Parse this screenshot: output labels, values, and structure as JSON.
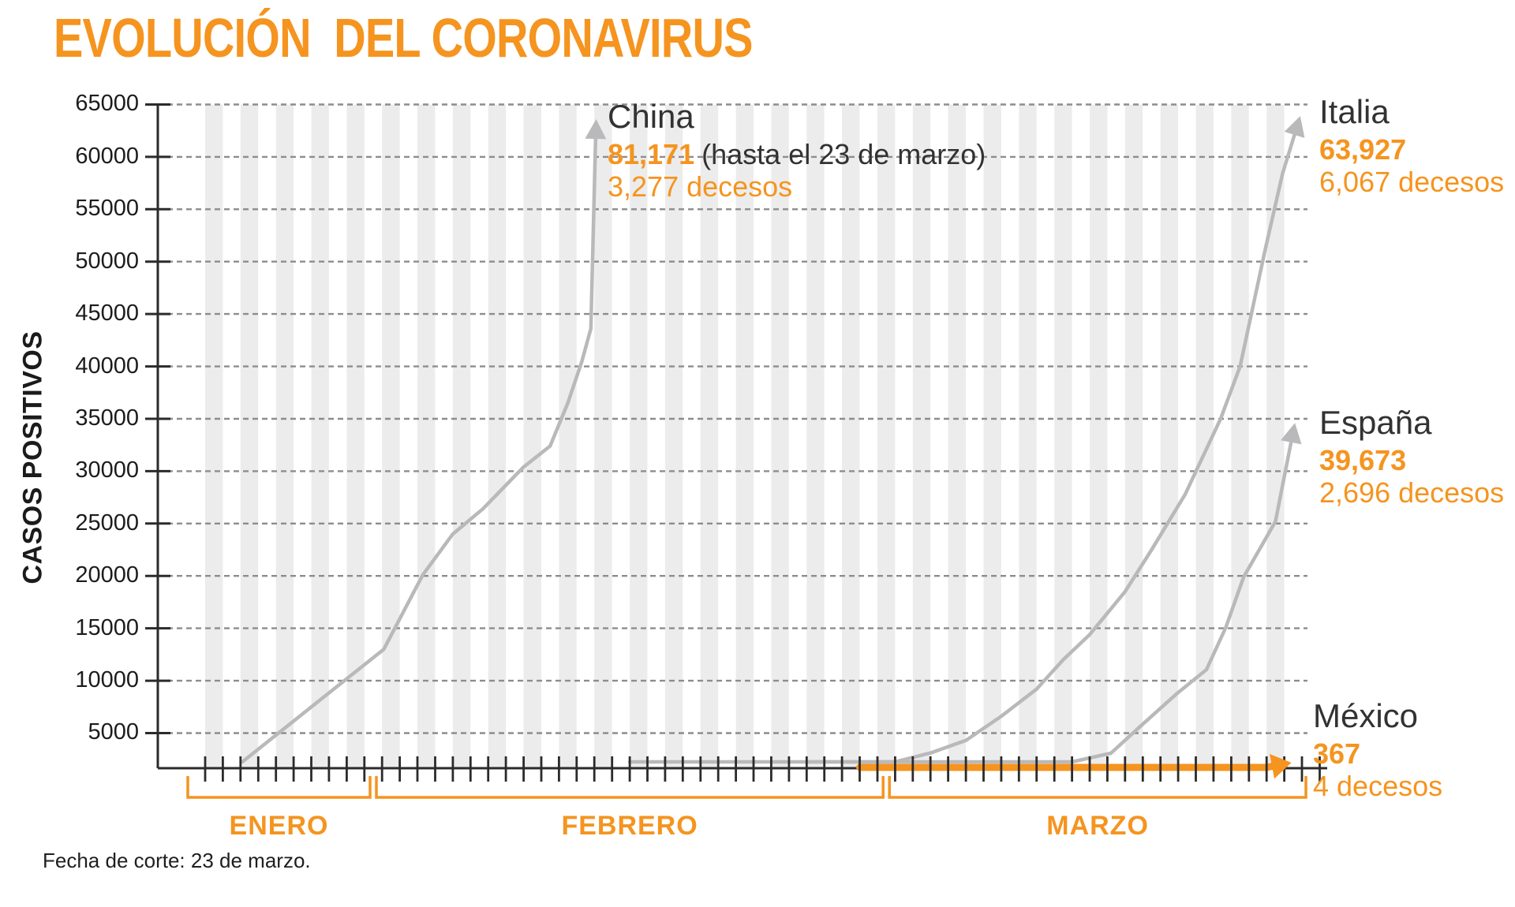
{
  "chart_data": {
    "type": "line",
    "title": "EVOLUCIÓN  DEL CORONAVIRUS",
    "ylabel": "CASOS POSITIVOS",
    "footer": "Fecha de corte: 23 de marzo.",
    "ylim": [
      0,
      65000
    ],
    "grid": true,
    "yticks": [
      65000,
      60000,
      55000,
      50000,
      45000,
      40000,
      35000,
      30000,
      25000,
      20000,
      15000,
      10000,
      5000
    ],
    "x_axis": {
      "unit": "días",
      "months": [
        {
          "label": "ENERO",
          "days": 10
        },
        {
          "label": "FEBRERO",
          "days": 29
        },
        {
          "label": "MARZO",
          "days": 24
        }
      ]
    },
    "colors": {
      "accent": "#F5941F",
      "line_gray": "#B9B9BB",
      "band": "#ECECEC",
      "grid": "#8F8C8B",
      "axis": "#2B2B2B"
    },
    "series": [
      {
        "name": "China",
        "color": "#B9B9BB",
        "width": 4.5,
        "arrow": "up",
        "points": [
          [
            2.1,
            300
          ],
          [
            10.1,
            13000
          ],
          [
            12.3,
            20100
          ],
          [
            14,
            24000
          ],
          [
            15.7,
            26400
          ],
          [
            18,
            30400
          ],
          [
            19.5,
            32400
          ],
          [
            20.5,
            36500
          ],
          [
            21.3,
            40500
          ],
          [
            21.8,
            43600
          ]
        ],
        "arrow_to": [
          22.1,
          63600
        ],
        "annotation": {
          "name": "China",
          "value": "81,171",
          "note": "(hasta el 23 de marzo)",
          "deaths": "3,277 decesos",
          "final_cases": 81171,
          "final_deaths": 3277
        }
      },
      {
        "name": "Italia",
        "color": "#B9B9BB",
        "width": 4.5,
        "arrow": "up",
        "points": [
          [
            24,
            5
          ],
          [
            30,
            60
          ],
          [
            32,
            155
          ],
          [
            34,
            320
          ],
          [
            36,
            650
          ],
          [
            38,
            1130
          ],
          [
            39,
            2100
          ],
          [
            41,
            3100
          ],
          [
            43,
            4300
          ],
          [
            45,
            6600
          ],
          [
            47,
            9200
          ],
          [
            48.5,
            12000
          ],
          [
            50,
            14400
          ],
          [
            52,
            18500
          ],
          [
            53.5,
            22500
          ],
          [
            55.4,
            27800
          ],
          [
            57.4,
            35000
          ],
          [
            58.5,
            40000
          ],
          [
            59.9,
            51000
          ],
          [
            60.9,
            58400
          ]
        ],
        "arrow_to": [
          61.9,
          63900
        ],
        "annotation": {
          "name": "Italia",
          "value": "63,927",
          "deaths": "6,067 decesos",
          "final_cases": 63927,
          "final_deaths": 6067
        }
      },
      {
        "name": "España",
        "color": "#B9B9BB",
        "width": 4.5,
        "arrow": "up",
        "points": [
          [
            34,
            10
          ],
          [
            38,
            50
          ],
          [
            42,
            250
          ],
          [
            46,
            700
          ],
          [
            49,
            1700
          ],
          [
            51.2,
            3080
          ],
          [
            52.9,
            5700
          ],
          [
            54.9,
            8730
          ],
          [
            56.6,
            11060
          ],
          [
            57.7,
            15100
          ],
          [
            58.7,
            19900
          ],
          [
            60.5,
            25200
          ]
        ],
        "arrow_to": [
          61.6,
          34600
        ],
        "annotation": {
          "name": "España",
          "value": "39,673",
          "deaths": "2,696 decesos",
          "final_cases": 39673,
          "final_deaths": 2696
        }
      },
      {
        "name": "México",
        "color": "#F5941F",
        "width": 9,
        "arrow": "right",
        "points": [
          [
            37,
            3
          ],
          [
            40,
            6
          ],
          [
            44,
            15
          ],
          [
            48,
            40
          ],
          [
            52,
            80
          ],
          [
            55,
            118
          ],
          [
            58,
            203
          ],
          [
            60,
            316
          ]
        ],
        "arrow_to": [
          61.4,
          367
        ],
        "annotation": {
          "name": "México",
          "value": "367",
          "deaths": "4 decesos",
          "final_cases": 367,
          "final_deaths": 4
        }
      }
    ]
  }
}
